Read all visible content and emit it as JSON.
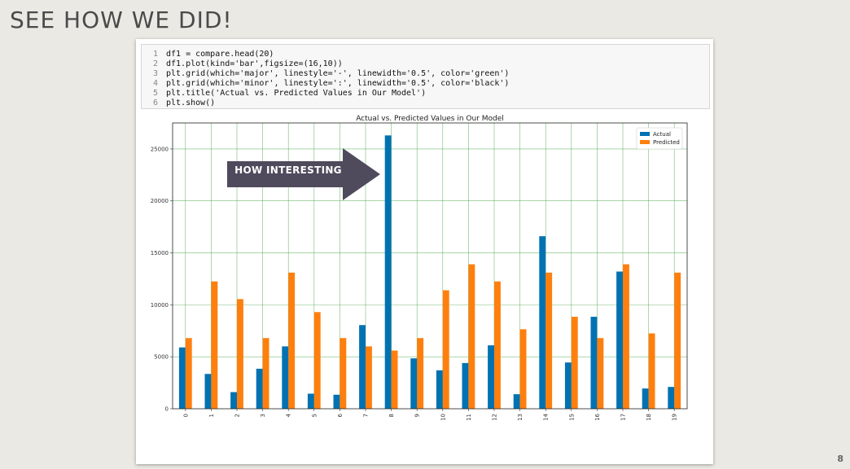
{
  "slide": {
    "title": "SEE HOW WE DID!",
    "page_number": "8"
  },
  "code": {
    "lines": [
      {
        "n": "1",
        "text": "df1 = compare.head(20)"
      },
      {
        "n": "2",
        "text": "df1.plot(kind='bar',figsize=(16,10))"
      },
      {
        "n": "3",
        "text": "plt.grid(which='major', linestyle='-', linewidth='0.5', color='green')"
      },
      {
        "n": "4",
        "text": "plt.grid(which='minor', linestyle=':', linewidth='0.5', color='black')"
      },
      {
        "n": "5",
        "text": "plt.title('Actual vs. Predicted Values in Our Model')"
      },
      {
        "n": "6",
        "text": "plt.show()"
      }
    ]
  },
  "callout": {
    "label": "HOW INTERESTING",
    "color": "#4f4a5c"
  },
  "chart_data": {
    "type": "bar",
    "title": "Actual vs. Predicted Values in Our Model",
    "xlabel": "",
    "ylabel": "",
    "categories": [
      "0",
      "1",
      "2",
      "3",
      "4",
      "5",
      "6",
      "7",
      "8",
      "9",
      "10",
      "11",
      "12",
      "13",
      "14",
      "15",
      "16",
      "17",
      "18",
      "19"
    ],
    "series": [
      {
        "name": "Actual",
        "color": "#0072b2",
        "values": [
          5900,
          3350,
          1600,
          3850,
          6000,
          1450,
          1350,
          8050,
          26300,
          4850,
          3700,
          4400,
          6100,
          1400,
          16600,
          4450,
          8850,
          13200,
          1950,
          2100
        ]
      },
      {
        "name": "Predicted",
        "color": "#ff7f0e",
        "values": [
          6800,
          12250,
          10550,
          6800,
          13100,
          9300,
          6800,
          6000,
          5600,
          6800,
          11400,
          13900,
          12250,
          7650,
          13100,
          8850,
          6800,
          13900,
          7250,
          13100
        ]
      }
    ],
    "ylim": [
      0,
      27500
    ],
    "yticks": [
      0,
      5000,
      10000,
      15000,
      20000,
      25000
    ],
    "grid": true,
    "grid_color": "#3aa03a",
    "legend_position": "top-right"
  }
}
